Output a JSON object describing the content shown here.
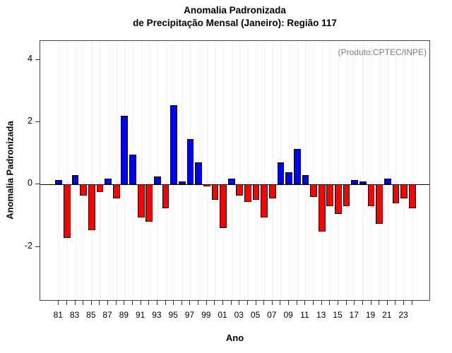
{
  "page": {
    "background": "#ffffff"
  },
  "chart_data": {
    "type": "bar",
    "title_line1": "Anomalia Padronizada",
    "title_line2": "de Precipitação Mensal (Janeiro): Região 117",
    "xlabel": "Ano",
    "ylabel": "Anomalia Padronizada",
    "annotation": "(Produto:CPTEC/INPE)",
    "years": [
      1981,
      1982,
      1983,
      1984,
      1985,
      1986,
      1987,
      1988,
      1989,
      1990,
      1991,
      1992,
      1993,
      1994,
      1995,
      1996,
      1997,
      1998,
      1999,
      2000,
      2001,
      2002,
      2003,
      2004,
      2005,
      2006,
      2007,
      2008,
      2009,
      2010,
      2011,
      2012,
      2013,
      2014,
      2015,
      2016,
      2017,
      2018,
      2019,
      2020,
      2021,
      2022,
      2023,
      2024
    ],
    "values": [
      0.15,
      -1.7,
      0.3,
      -0.35,
      -1.45,
      -0.25,
      0.2,
      -0.45,
      2.2,
      0.95,
      -1.05,
      -1.2,
      0.25,
      -0.75,
      2.55,
      0.1,
      1.45,
      0.7,
      -0.05,
      -0.5,
      -1.4,
      0.2,
      -0.35,
      -0.55,
      -0.5,
      -1.05,
      -0.45,
      0.7,
      0.4,
      1.15,
      0.3,
      -0.4,
      -1.5,
      -0.7,
      -0.95,
      -0.7,
      0.15,
      0.1,
      -0.7,
      -1.25,
      0.2,
      -0.6,
      -0.45,
      -0.75
    ],
    "xtick_labels": [
      "81",
      "83",
      "85",
      "87",
      "89",
      "91",
      "93",
      "95",
      "97",
      "99",
      "01",
      "03",
      "05",
      "07",
      "09",
      "11",
      "13",
      "15",
      "17",
      "19",
      "21",
      "23"
    ],
    "ytick_values": [
      -2,
      0,
      2,
      4
    ],
    "ytick_labels": [
      "-2",
      "0",
      "2",
      "4"
    ],
    "ylim": [
      -3.7,
      4.6
    ],
    "grid": "vertical-dotted",
    "legend": "none",
    "positive_color": "#0000ff",
    "negative_color": "#ff0000",
    "bar_border_color": "#000000",
    "frame_color": "#444444",
    "annotation_color": "#7d7d7d"
  }
}
